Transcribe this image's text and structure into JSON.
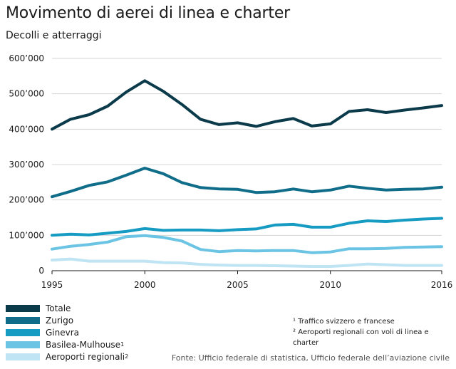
{
  "header": {
    "title": "Movimento di aerei di linea e charter",
    "subtitle": "Decolli e atterraggi"
  },
  "chart_data": {
    "type": "line",
    "x": [
      1995,
      1996,
      1997,
      1998,
      1999,
      2000,
      2001,
      2002,
      2003,
      2004,
      2005,
      2006,
      2007,
      2008,
      2009,
      2010,
      2011,
      2012,
      2013,
      2014,
      2015,
      2016
    ],
    "xlim": [
      1995,
      2016
    ],
    "ylim": [
      0,
      600000
    ],
    "x_ticks": [
      1995,
      2000,
      2005,
      2010,
      2016
    ],
    "y_ticks": [
      0,
      100000,
      200000,
      300000,
      400000,
      500000,
      600000
    ],
    "x_tick_labels": [
      "1995",
      "2000",
      "2005",
      "2010",
      "2016"
    ],
    "y_tick_labels": [
      "0",
      "100’000",
      "200’000",
      "300’000",
      "400’000",
      "500’000",
      "600’000"
    ],
    "grid": true,
    "legend_position": "bottom-left",
    "series": [
      {
        "name": "Totale",
        "color": "#0b3a4a",
        "values": [
          400000,
          428000,
          441000,
          465000,
          505000,
          537000,
          507000,
          470000,
          428000,
          413000,
          418000,
          408000,
          421000,
          430000,
          409000,
          415000,
          450000,
          455000,
          447000,
          454000,
          460000,
          467000
        ]
      },
      {
        "name": "Zurigo",
        "color": "#0f6d8a",
        "values": [
          209000,
          224000,
          241000,
          251000,
          270000,
          290000,
          274000,
          249000,
          235000,
          231000,
          230000,
          221000,
          223000,
          231000,
          223000,
          228000,
          239000,
          233000,
          228000,
          230000,
          231000,
          236000
        ]
      },
      {
        "name": "Ginevra",
        "color": "#169bc2",
        "values": [
          100000,
          103000,
          101000,
          106000,
          111000,
          119000,
          114000,
          115000,
          115000,
          113000,
          116000,
          118000,
          129000,
          131000,
          123000,
          123000,
          134000,
          141000,
          139000,
          143000,
          146000,
          148000
        ]
      },
      {
        "name": "Basilea-Mulhouse",
        "sup": "1",
        "color": "#6bc4e3",
        "values": [
          61000,
          69000,
          74000,
          81000,
          96000,
          99000,
          94000,
          84000,
          60000,
          54000,
          57000,
          56000,
          57000,
          57000,
          51000,
          53000,
          62000,
          62000,
          63000,
          66000,
          67000,
          68000
        ]
      },
      {
        "name": "Aeroporti regionali",
        "sup": "2",
        "color": "#bfe4f3",
        "values": [
          30000,
          33000,
          27000,
          27000,
          27000,
          27000,
          23000,
          22000,
          18000,
          16000,
          15000,
          15000,
          14000,
          13000,
          12000,
          12000,
          15000,
          19000,
          17000,
          15000,
          15000,
          15000
        ]
      }
    ]
  },
  "notes": {
    "note1": "¹ Traffico svizzero e francese",
    "note2": "² Aeroporti regionali con voli di linea e charter"
  },
  "source": "Fonte: Ufficio federale di statistica, Ufficio federale dell’aviazione civile"
}
